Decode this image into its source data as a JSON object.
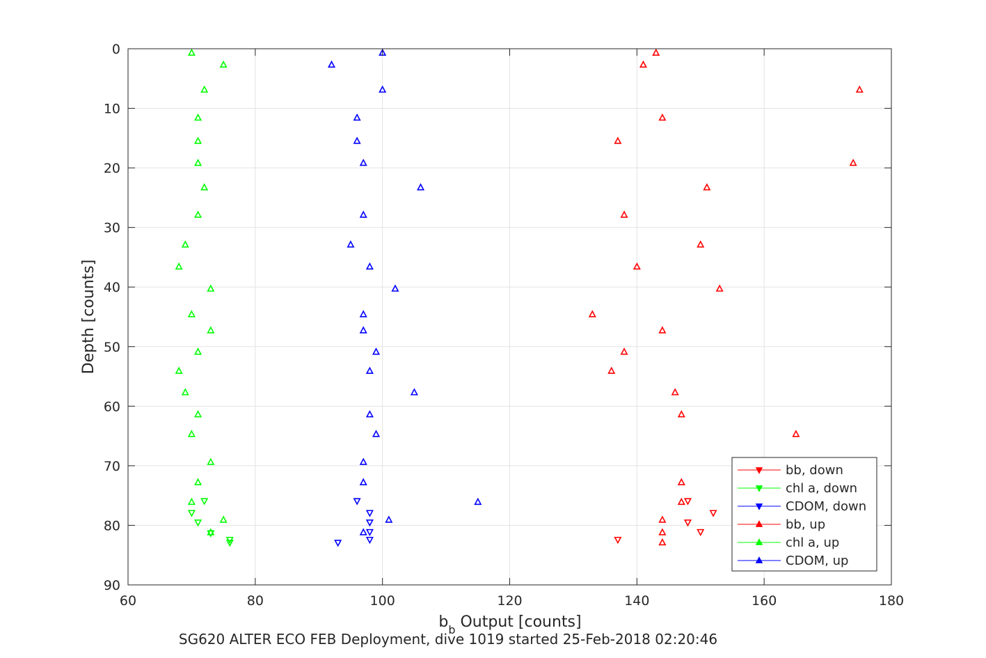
{
  "chart_data": {
    "type": "scatter",
    "xlabel_main": "b",
    "xlabel_sub": "b",
    "xlabel_rest": " Output [counts]",
    "ylabel": "Depth [counts]",
    "caption": "SG620 ALTER ECO FEB Deployment, dive 1019 started 25-Feb-2018 02:20:46",
    "xlim": [
      60,
      180
    ],
    "ylim": [
      0,
      90
    ],
    "y_reversed": true,
    "grid": true,
    "legend_position": "bottom-right",
    "xticks": [
      60,
      80,
      100,
      120,
      140,
      160,
      180
    ],
    "yticks": [
      0,
      10,
      20,
      30,
      40,
      50,
      60,
      70,
      80,
      90
    ],
    "series": [
      {
        "name": "bb, down",
        "color": "#ff0000",
        "marker": "triangle-down",
        "points": [
          [
            148,
            75.9
          ],
          [
            152,
            77.9
          ],
          [
            148,
            79.5
          ],
          [
            150,
            81.1
          ],
          [
            137,
            82.4
          ]
        ]
      },
      {
        "name": "chl a, down",
        "color": "#00ff00",
        "marker": "triangle-down",
        "points": [
          [
            72,
            75.9
          ],
          [
            70,
            77.9
          ],
          [
            71,
            79.5
          ],
          [
            73,
            81.3
          ],
          [
            76,
            82.4
          ],
          [
            76,
            82.9
          ]
        ]
      },
      {
        "name": "CDOM, down",
        "color": "#0000ff",
        "marker": "triangle-down",
        "points": [
          [
            96,
            75.9
          ],
          [
            98,
            77.9
          ],
          [
            98,
            79.5
          ],
          [
            98,
            81.1
          ],
          [
            98,
            82.4
          ],
          [
            93,
            82.9
          ]
        ]
      },
      {
        "name": "bb, up",
        "color": "#ff0000",
        "marker": "triangle-up",
        "points": [
          [
            143,
            0.7
          ],
          [
            141,
            2.7
          ],
          [
            175,
            6.9
          ],
          [
            144,
            11.6
          ],
          [
            137,
            15.5
          ],
          [
            174,
            19.2
          ],
          [
            151,
            23.3
          ],
          [
            138,
            27.9
          ],
          [
            150,
            32.9
          ],
          [
            140,
            36.6
          ],
          [
            153,
            40.3
          ],
          [
            133,
            44.6
          ],
          [
            144,
            47.3
          ],
          [
            138,
            50.9
          ],
          [
            136,
            54.1
          ],
          [
            146,
            57.7
          ],
          [
            147,
            61.4
          ],
          [
            165,
            64.7
          ],
          [
            147,
            72.8
          ],
          [
            147,
            76.1
          ],
          [
            144,
            79.1
          ],
          [
            144,
            81.2
          ],
          [
            144,
            82.9
          ]
        ]
      },
      {
        "name": "chl a, up",
        "color": "#00ff00",
        "marker": "triangle-up",
        "points": [
          [
            70,
            0.7
          ],
          [
            75,
            2.7
          ],
          [
            72,
            6.9
          ],
          [
            71,
            11.6
          ],
          [
            71,
            15.5
          ],
          [
            71,
            19.2
          ],
          [
            72,
            23.3
          ],
          [
            71,
            27.9
          ],
          [
            69,
            32.9
          ],
          [
            68,
            36.6
          ],
          [
            73,
            40.3
          ],
          [
            70,
            44.6
          ],
          [
            73,
            47.3
          ],
          [
            71,
            50.9
          ],
          [
            68,
            54.1
          ],
          [
            69,
            57.7
          ],
          [
            71,
            61.4
          ],
          [
            70,
            64.7
          ],
          [
            73,
            69.4
          ],
          [
            71,
            72.8
          ],
          [
            70,
            76.1
          ],
          [
            75,
            79.1
          ],
          [
            73,
            81.2
          ]
        ]
      },
      {
        "name": "CDOM, up",
        "color": "#0000ff",
        "marker": "triangle-up",
        "points": [
          [
            100,
            0.7
          ],
          [
            92,
            2.7
          ],
          [
            100,
            6.9
          ],
          [
            96,
            11.6
          ],
          [
            96,
            15.5
          ],
          [
            97,
            19.2
          ],
          [
            106,
            23.3
          ],
          [
            97,
            27.9
          ],
          [
            95,
            32.9
          ],
          [
            98,
            36.6
          ],
          [
            102,
            40.3
          ],
          [
            97,
            44.6
          ],
          [
            97,
            47.3
          ],
          [
            99,
            50.9
          ],
          [
            98,
            54.1
          ],
          [
            105,
            57.7
          ],
          [
            98,
            61.4
          ],
          [
            99,
            64.7
          ],
          [
            97,
            69.4
          ],
          [
            97,
            72.8
          ],
          [
            115,
            76.1
          ],
          [
            101,
            79.1
          ],
          [
            97,
            81.2
          ]
        ]
      }
    ]
  }
}
